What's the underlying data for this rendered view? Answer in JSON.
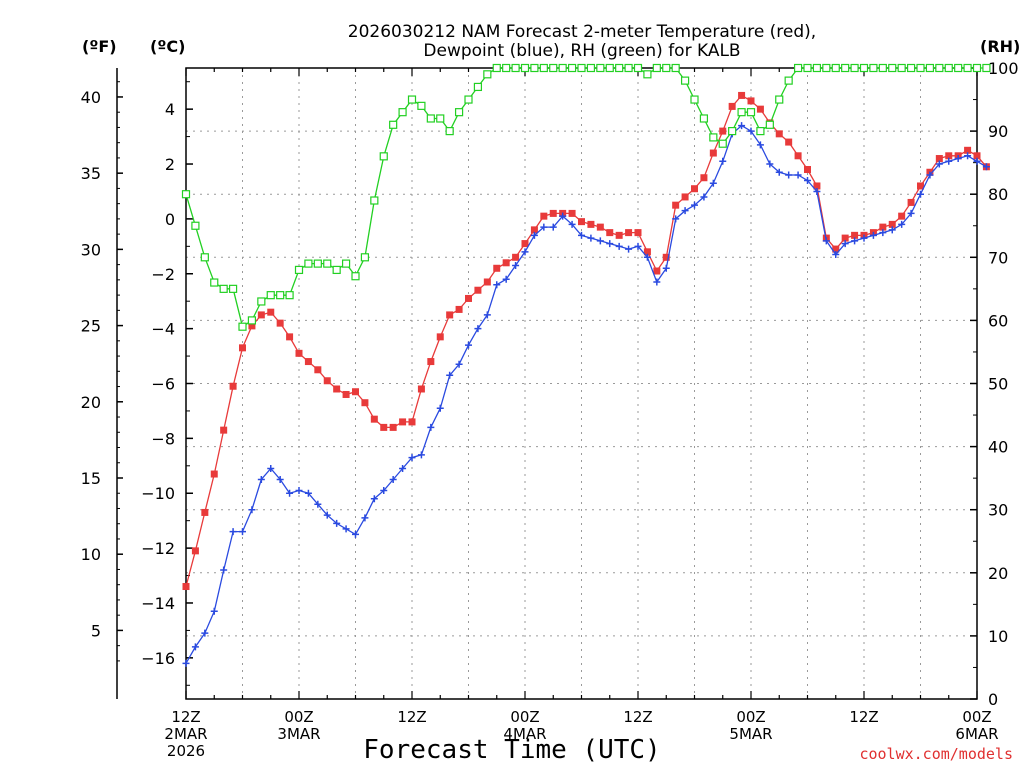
{
  "chart_data": {
    "type": "line",
    "title_line1": "2026030212 NAM Forecast 2-meter Temperature (red),",
    "title_line2": "Dewpoint (blue), RH (green) for KALB",
    "xlabel": "Forecast Time (UTC)",
    "unit_f": "(ºF)",
    "unit_c": "(ºC)",
    "unit_rh": "(RH)",
    "credit": "coolwx.com/models",
    "x_range_hours": [
      0,
      84
    ],
    "ylim_c": [
      -17.5,
      5.5
    ],
    "ylim_rh": [
      0,
      100
    ],
    "yticks_c": [
      "-16",
      "-14",
      "-12",
      "-10",
      "-8",
      "-6",
      "-4",
      "-2",
      "0",
      "2",
      "4"
    ],
    "yticks_f": [
      "5",
      "10",
      "15",
      "20",
      "25",
      "30",
      "35",
      "40"
    ],
    "yticks_rh": [
      "0",
      "10",
      "20",
      "30",
      "40",
      "50",
      "60",
      "70",
      "80",
      "90",
      "100"
    ],
    "x_ticks": [
      {
        "hour": 0,
        "lines": [
          "12Z",
          "2MAR",
          "2026"
        ]
      },
      {
        "hour": 12,
        "lines": [
          "00Z",
          "3MAR"
        ]
      },
      {
        "hour": 24,
        "lines": [
          "12Z"
        ]
      },
      {
        "hour": 36,
        "lines": [
          "00Z",
          "4MAR"
        ]
      },
      {
        "hour": 48,
        "lines": [
          "12Z"
        ]
      },
      {
        "hour": 60,
        "lines": [
          "00Z",
          "5MAR"
        ]
      },
      {
        "hour": 72,
        "lines": [
          "12Z"
        ]
      },
      {
        "hour": 84,
        "lines": [
          "00Z",
          "6MAR"
        ]
      }
    ],
    "series": [
      {
        "name": "Temperature",
        "unit": "°C",
        "color": "#e83a3a",
        "marker": "filled-square",
        "values": [
          -13.4,
          -12.1,
          -10.7,
          -9.3,
          -7.7,
          -6.1,
          -4.7,
          -3.9,
          -3.5,
          -3.4,
          -3.8,
          -4.3,
          -4.9,
          -5.2,
          -5.5,
          -5.9,
          -6.2,
          -6.4,
          -6.3,
          -6.7,
          -7.3,
          -7.6,
          -7.6,
          -7.4,
          -7.4,
          -6.2,
          -5.2,
          -4.3,
          -3.5,
          -3.3,
          -2.9,
          -2.6,
          -2.3,
          -1.8,
          -1.6,
          -1.4,
          -0.9,
          -0.4,
          0.1,
          0.2,
          0.2,
          0.2,
          -0.1,
          -0.2,
          -0.3,
          -0.5,
          -0.6,
          -0.5,
          -0.5,
          -1.2,
          -1.9,
          -1.4,
          0.5,
          0.8,
          1.1,
          1.5,
          2.4,
          3.2,
          4.1,
          4.5,
          4.3,
          4.0,
          3.5,
          3.1,
          2.8,
          2.3,
          1.8,
          1.2,
          -0.7,
          -1.1,
          -0.7,
          -0.6,
          -0.6,
          -0.5,
          -0.3,
          -0.2,
          0.1,
          0.6,
          1.2,
          1.7,
          2.2,
          2.3,
          2.3,
          2.5,
          2.3,
          1.9
        ]
      },
      {
        "name": "Dewpoint",
        "unit": "°C",
        "color": "#2a4ae0",
        "marker": "plus",
        "values": [
          -16.2,
          -15.6,
          -15.1,
          -14.3,
          -12.8,
          -11.4,
          -11.4,
          -10.6,
          -9.5,
          -9.1,
          -9.5,
          -10.0,
          -9.9,
          -10.0,
          -10.4,
          -10.8,
          -11.1,
          -11.3,
          -11.5,
          -10.9,
          -10.2,
          -9.9,
          -9.5,
          -9.1,
          -8.7,
          -8.6,
          -7.6,
          -6.9,
          -5.7,
          -5.3,
          -4.6,
          -4.0,
          -3.5,
          -2.4,
          -2.2,
          -1.7,
          -1.2,
          -0.6,
          -0.3,
          -0.3,
          0.1,
          -0.2,
          -0.6,
          -0.7,
          -0.8,
          -0.9,
          -1.0,
          -1.1,
          -1.0,
          -1.4,
          -2.3,
          -1.8,
          0.0,
          0.3,
          0.5,
          0.8,
          1.3,
          2.1,
          3.1,
          3.4,
          3.2,
          2.7,
          2.0,
          1.7,
          1.6,
          1.6,
          1.4,
          1.0,
          -0.8,
          -1.3,
          -0.9,
          -0.8,
          -0.7,
          -0.6,
          -0.5,
          -0.4,
          -0.2,
          0.2,
          0.9,
          1.6,
          2.0,
          2.1,
          2.2,
          2.3,
          2.1,
          1.9
        ]
      },
      {
        "name": "RH",
        "unit": "%",
        "color": "#22d022",
        "marker": "open-square",
        "values": [
          80,
          75,
          70,
          66,
          65,
          65,
          59,
          60,
          63,
          64,
          64,
          64,
          68,
          69,
          69,
          69,
          68,
          69,
          67,
          70,
          79,
          86,
          91,
          93,
          95,
          94,
          92,
          92,
          90,
          93,
          95,
          97,
          99,
          100,
          101,
          101,
          101,
          101,
          101,
          101,
          103,
          102,
          101,
          101,
          101,
          100,
          101,
          100,
          100,
          99,
          101,
          100,
          100,
          98,
          95,
          92,
          89,
          88,
          90,
          93,
          93,
          90,
          91,
          95,
          98,
          102,
          102,
          101,
          102,
          101,
          101,
          102,
          102,
          102,
          102,
          103,
          102,
          103,
          103,
          103,
          103,
          103,
          102,
          103,
          102,
          102
        ]
      }
    ]
  }
}
